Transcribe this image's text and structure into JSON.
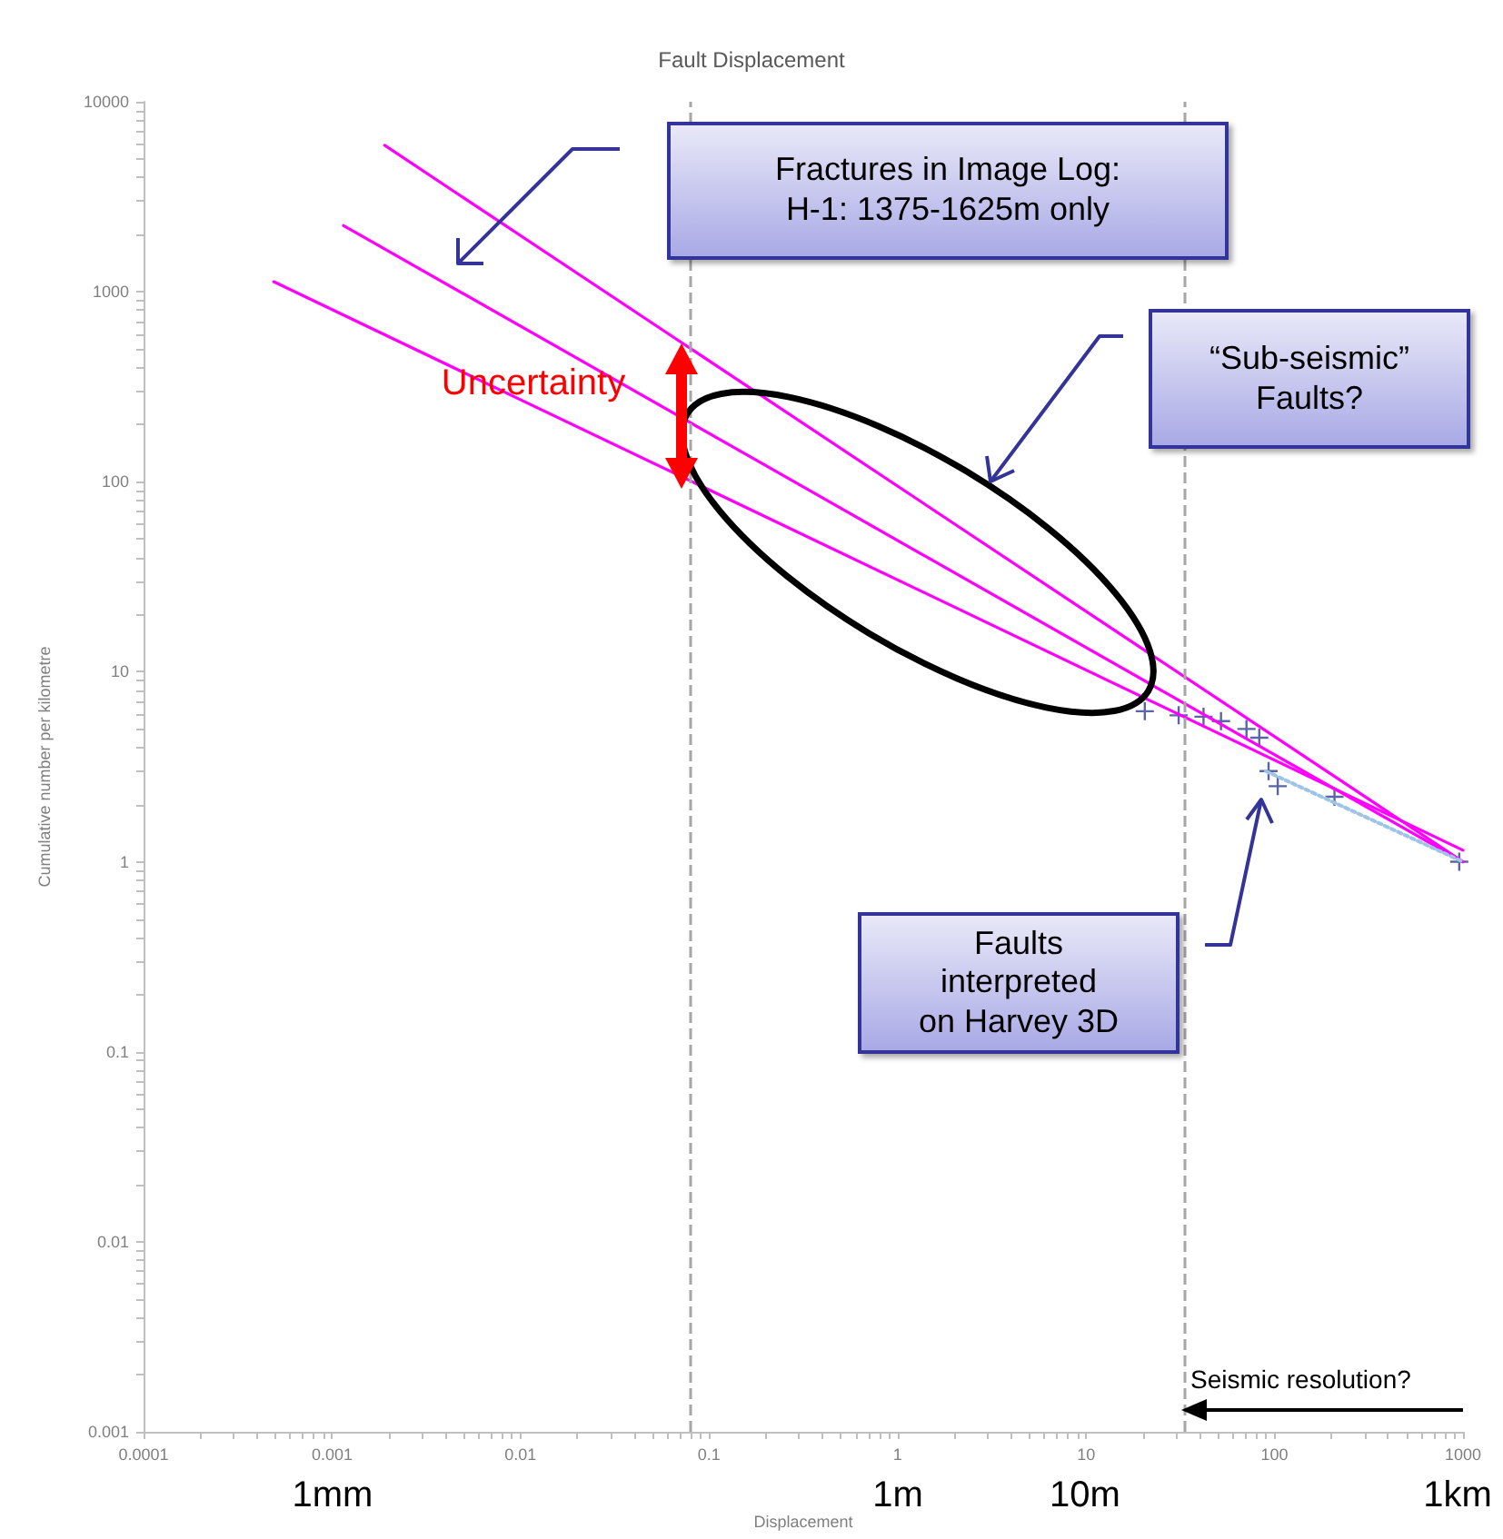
{
  "chart_data": {
    "type": "line",
    "title": "Fault Displacement",
    "xlabel": "Displacement",
    "ylabel": "Cumulative number per kilometre",
    "log": "xy",
    "grid": false,
    "xlim": [
      0.0001,
      1000
    ],
    "xticks": [
      0.0001,
      0.001,
      0.01,
      0.1,
      1,
      10,
      100,
      1000
    ],
    "ylim": [
      0.001,
      10000
    ],
    "yticks": [
      0.001,
      0.01,
      0.1,
      1,
      10,
      100,
      1000,
      10000
    ],
    "series": [
      {
        "color": "#ff00ff",
        "line_style": "solid",
        "marker": "none",
        "x": [
          0.0019,
          1000
        ],
        "values": [
          5900,
          1.0
        ]
      },
      {
        "color": "#ff00ff",
        "line_style": "solid",
        "marker": "none",
        "x": [
          0.00115,
          1000
        ],
        "values": [
          2230,
          1.0
        ]
      },
      {
        "color": "#ff00ff",
        "line_style": "solid",
        "marker": "none",
        "x": [
          0.00049,
          1000
        ],
        "values": [
          1130,
          1.15
        ]
      },
      {
        "type": "line",
        "color": "#9dc3e6",
        "line_style": "dotted",
        "marker": "none",
        "x": [
          90,
          1000
        ],
        "values": [
          3.0,
          1.0
        ]
      },
      {
        "type": "scatter",
        "color": "#2f3f8f",
        "marker": "cross",
        "x": [
          20.5,
          31,
          42,
          52,
          71,
          83,
          93,
          104,
          208,
          955
        ],
        "values": [
          6.2,
          5.9,
          5.8,
          5.5,
          5.0,
          4.5,
          3.0,
          2.5,
          2.2,
          1.0
        ]
      }
    ],
    "ref_lines": [
      {
        "axis": "x",
        "value": 0.083,
        "label": null,
        "color": "#a6a6a6",
        "line_style": "dashed"
      },
      {
        "axis": "x",
        "value": 33,
        "label": null,
        "color": "#a6a6a6",
        "line_style": "dashed"
      }
    ],
    "annotations": [
      "Fractures in Image Log:\nH-1: 1375-1625m only",
      "“Sub-seismic”\nFaults?",
      "Faults\ninterpreted\non Harvey 3D",
      "Uncertainty",
      "Seismic resolution?",
      "1mm",
      "1m",
      "10m",
      "1km"
    ]
  }
}
